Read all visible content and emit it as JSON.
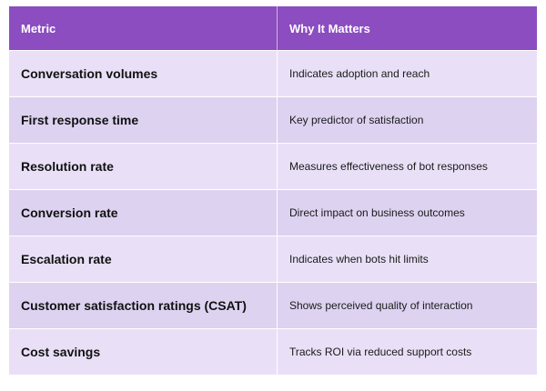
{
  "table": {
    "headers": [
      "Metric",
      "Why It Matters"
    ],
    "rows": [
      {
        "metric": "Conversation volumes",
        "why": "Indicates adoption and reach"
      },
      {
        "metric": "First response time",
        "why": "Key predictor of satisfaction"
      },
      {
        "metric": "Resolution rate",
        "why": "Measures effectiveness of bot responses"
      },
      {
        "metric": "Conversion rate",
        "why": "Direct impact on business outcomes"
      },
      {
        "metric": "Escalation rate",
        "why": "Indicates when bots hit limits"
      },
      {
        "metric": "Customer satisfaction ratings (CSAT)",
        "why": "Shows perceived quality of interaction"
      },
      {
        "metric": "Cost savings",
        "why": "Tracks ROI via reduced support costs"
      }
    ]
  },
  "colors": {
    "header_bg": "#8b4dbf",
    "row_light": "#e9e0f7",
    "row_dark": "#ddd2f0"
  }
}
